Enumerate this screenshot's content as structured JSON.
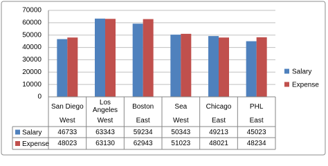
{
  "chart_data": {
    "type": "bar",
    "categories": [
      "San Diego",
      "Los Angeles",
      "Boston",
      "Sea",
      "Chicago",
      "PHL"
    ],
    "regions": [
      "West",
      "West",
      "East",
      "West",
      "East",
      "East"
    ],
    "series": [
      {
        "name": "Salary",
        "color": "#4f81bd",
        "values": [
          46733,
          63343,
          59234,
          50343,
          49213,
          45023
        ]
      },
      {
        "name": "Expense",
        "color": "#c0504d",
        "values": [
          48023,
          63130,
          62943,
          51023,
          48021,
          48234
        ]
      }
    ],
    "ylim": [
      0,
      70000
    ],
    "yticks": [
      0,
      10000,
      20000,
      30000,
      40000,
      50000,
      60000,
      70000
    ],
    "grid": true,
    "legend": "right"
  }
}
